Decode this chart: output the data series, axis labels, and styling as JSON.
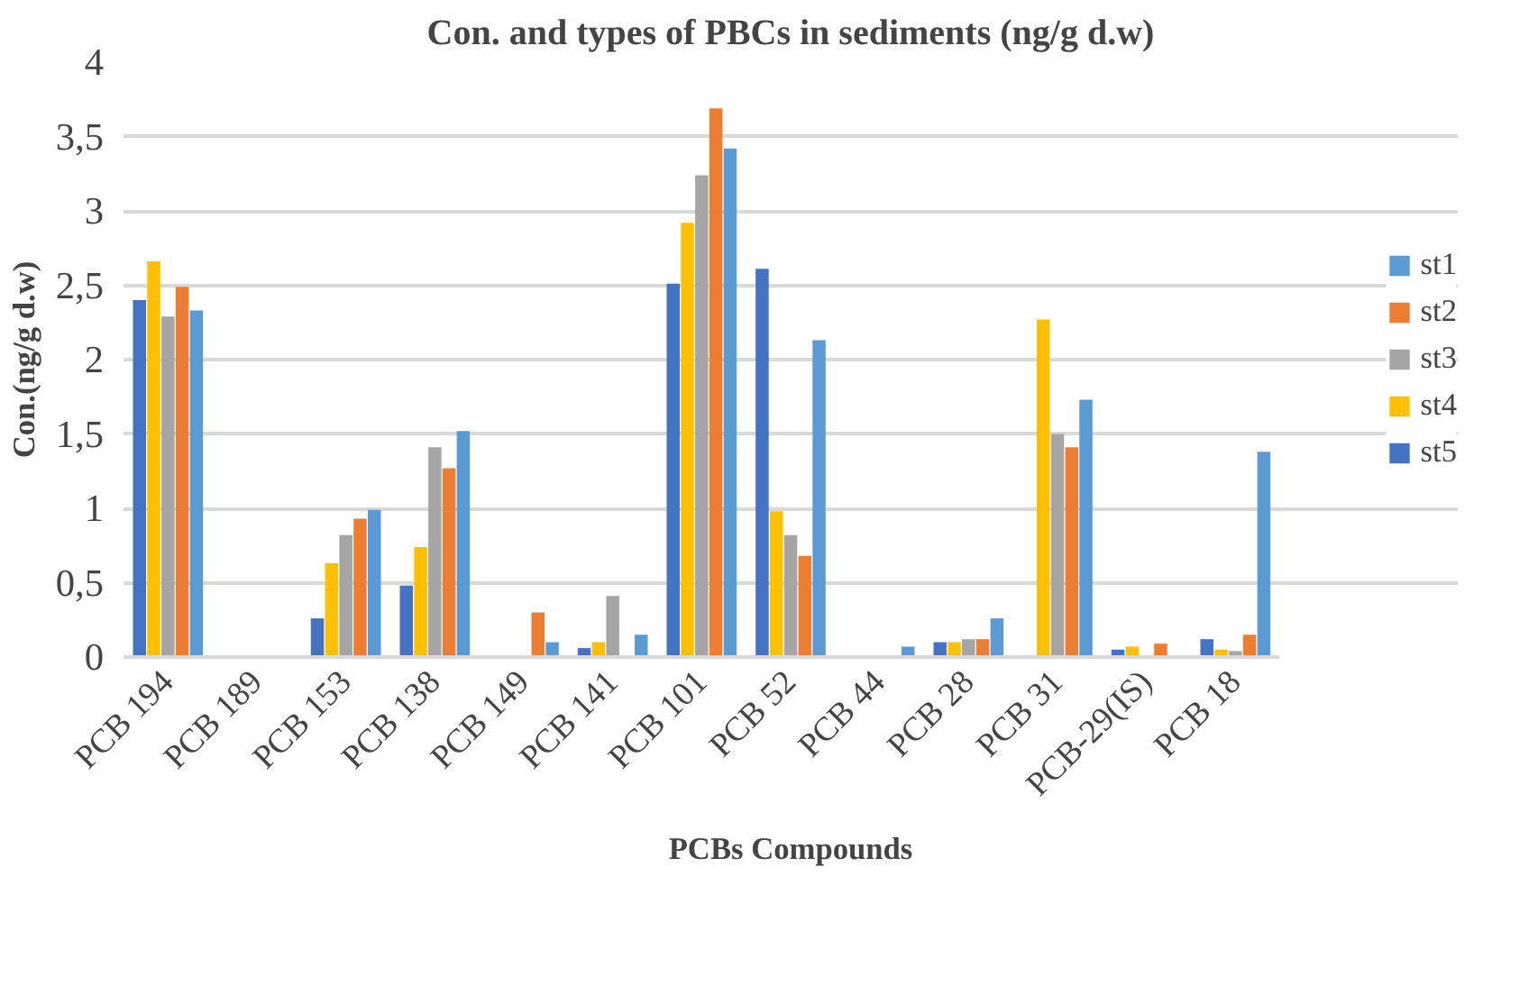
{
  "chart_data": {
    "type": "bar",
    "title": "Con. and types of PBCs in sediments (ng/g d.w)",
    "xlabel": "PCBs Compounds",
    "ylabel": "Con.(ng/g d.w)",
    "categories": [
      "PCB 194",
      "PCB 189",
      "PCB 153",
      "PCB 138",
      "PCB 149",
      "PCB 141",
      "PCB 101",
      "PCB 52",
      "PCB 44",
      "PCB 28",
      "PCB 31",
      "PCB-29(IS)",
      "PCB 18"
    ],
    "series": [
      {
        "name": "st5",
        "color": "#4472c4",
        "values": [
          2.4,
          0,
          0.26,
          0.48,
          0,
          0.06,
          2.51,
          2.61,
          null,
          0.1,
          0,
          0.05,
          0.12
        ]
      },
      {
        "name": "st4",
        "color": "#ffc000",
        "values": [
          2.66,
          0,
          0.63,
          0.74,
          0,
          0.1,
          2.92,
          0.98,
          null,
          0.1,
          2.27,
          0.07,
          0.05
        ]
      },
      {
        "name": "st3",
        "color": "#a5a5a5",
        "values": [
          2.29,
          0,
          0.82,
          1.41,
          0,
          0.41,
          3.24,
          0.82,
          null,
          0.12,
          1.5,
          0,
          0.04
        ]
      },
      {
        "name": "st2",
        "color": "#ed7d31",
        "values": [
          2.49,
          0,
          0.93,
          1.27,
          0.3,
          0,
          3.69,
          0.68,
          null,
          0.12,
          1.41,
          0.09,
          0.15
        ]
      },
      {
        "name": "st1",
        "color": "#5b9bd5",
        "values": [
          2.33,
          0,
          0.99,
          1.52,
          0.1,
          0.15,
          3.42,
          2.13,
          0.07,
          0.26,
          1.73,
          0,
          1.38
        ]
      }
    ],
    "ylim": [
      0,
      4
    ],
    "yticks": [
      {
        "value": 0,
        "label": "0"
      },
      {
        "value": 0.5,
        "label": "0,5"
      },
      {
        "value": 1,
        "label": "1"
      },
      {
        "value": 1.5,
        "label": "1,5"
      },
      {
        "value": 2,
        "label": "2"
      },
      {
        "value": 2.5,
        "label": "2,5"
      },
      {
        "value": 3,
        "label": "3"
      },
      {
        "value": 3.5,
        "label": "3,5"
      },
      {
        "value": 4,
        "label": "4"
      }
    ],
    "grid": "y",
    "legend": "right"
  }
}
